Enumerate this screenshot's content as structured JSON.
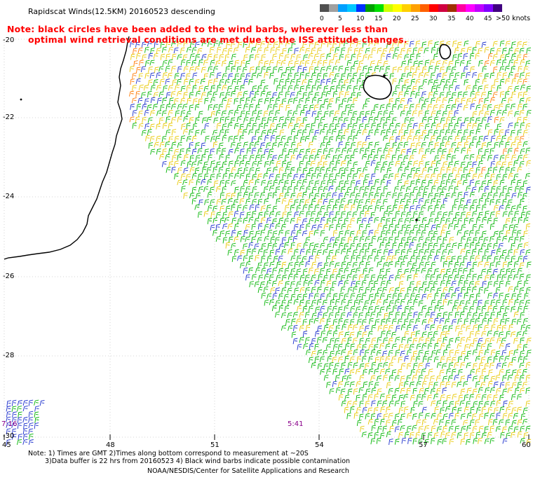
{
  "header": {
    "title": "Rapidscat Winds(12.5KM) 20160523 descending",
    "note_line1": "Note: black circles have been added to the wind barbs, wherever less than",
    "note_line2": "optimal wind retrieval conditions are met due to the ISS attitude changes."
  },
  "legend": {
    "units": ">50 knots",
    "bins": [
      {
        "label": "0",
        "color": "#505050"
      },
      {
        "label": "",
        "color": "#a0a0a0"
      },
      {
        "label": "5",
        "color": "#00a0ff"
      },
      {
        "label": "",
        "color": "#00c8ff"
      },
      {
        "label": "10",
        "color": "#0030ff"
      },
      {
        "label": "",
        "color": "#00a000"
      },
      {
        "label": "15",
        "color": "#00e000"
      },
      {
        "label": "",
        "color": "#d0ff00"
      },
      {
        "label": "20",
        "color": "#ffff00"
      },
      {
        "label": "",
        "color": "#ffd000"
      },
      {
        "label": "25",
        "color": "#ffa000"
      },
      {
        "label": "",
        "color": "#ff6000"
      },
      {
        "label": "30",
        "color": "#ff0000"
      },
      {
        "label": "",
        "color": "#d00040"
      },
      {
        "label": "35",
        "color": "#a03000"
      },
      {
        "label": "",
        "color": "#ff00a0"
      },
      {
        "label": "40",
        "color": "#ff00ff"
      },
      {
        "label": "",
        "color": "#c000ff"
      },
      {
        "label": "45",
        "color": "#8000ff"
      },
      {
        "label": "",
        "color": "#400080"
      }
    ]
  },
  "map": {
    "lat_labels": [
      "-20",
      "-22",
      "-24",
      "-26",
      "-28",
      "-30"
    ],
    "lon_labels": [
      "45",
      "48",
      "51",
      "54",
      "57",
      "60"
    ],
    "time_labels": [
      "7:16",
      "5:41"
    ]
  },
  "wind_colors": {
    "green": "#00b400",
    "yellow": "#e8c800",
    "blue": "#1a2ecc",
    "orange": "#ff7800",
    "coast": "#000000",
    "grid": "#c8c8c8"
  },
  "footer": {
    "line1": "Note: 1) Times are GMT 2)Times along bottom correspond to measurement at ~20S",
    "line2": "3)Data buffer is 22 hrs from 20160523 4) Black wind barbs indicate possible contamination",
    "credit": "NOAA/NESDIS/Center for Satellite Applications and Research"
  }
}
